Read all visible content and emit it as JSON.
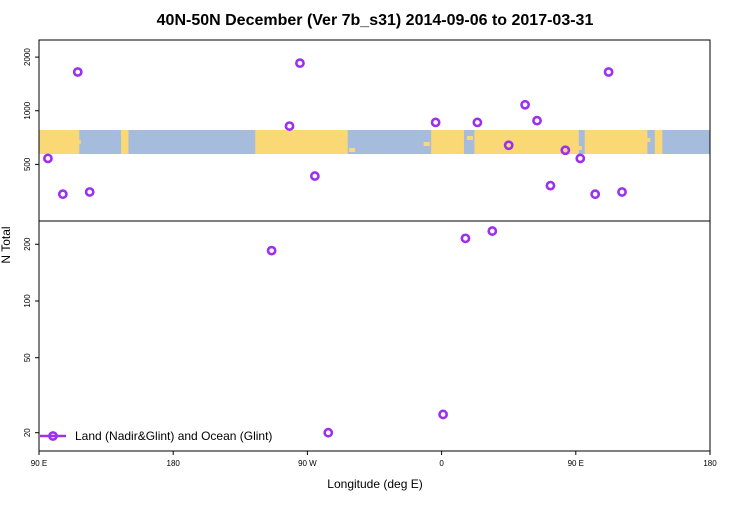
{
  "chart_data": {
    "type": "scatter",
    "title": "40N-50N December (Ver 7b_s31)   2014-09-06 to 2017-03-31",
    "xlabel": "Longitude (deg E)",
    "ylabel": "N Total",
    "x_ticks": [
      {
        "value": 90,
        "label": "90 E"
      },
      {
        "value": 180,
        "label": "180"
      },
      {
        "value": 270,
        "label": "90 W"
      },
      {
        "value": 360,
        "label": "0"
      },
      {
        "value": 450,
        "label": "90 E"
      },
      {
        "value": 540,
        "label": "180"
      }
    ],
    "xlim": [
      90,
      540
    ],
    "upper_panel": {
      "y_scale": "log",
      "ylim": [
        250,
        2400
      ],
      "y_ticks": [
        500,
        1000,
        2000
      ],
      "map_strip": "world map (land / ocean)",
      "land_color": "#fad876",
      "ocean_color": "#a6bcdc"
    },
    "lower_panel": {
      "y_scale": "log",
      "ylim": [
        17,
        250
      ],
      "y_ticks": [
        20,
        50,
        100,
        200
      ]
    },
    "series": [
      {
        "name": "Land (Nadir&Glint) and Ocean (Glint)",
        "color": "#9b30f0",
        "points": [
          {
            "x": 96,
            "y": 540
          },
          {
            "x": 106,
            "y": 340
          },
          {
            "x": 116,
            "y": 1650
          },
          {
            "x": 124,
            "y": 350
          },
          {
            "x": 246,
            "y": 185
          },
          {
            "x": 258,
            "y": 820
          },
          {
            "x": 265,
            "y": 1850
          },
          {
            "x": 275,
            "y": 430
          },
          {
            "x": 284,
            "y": 20
          },
          {
            "x": 356,
            "y": 860
          },
          {
            "x": 361,
            "y": 25
          },
          {
            "x": 376,
            "y": 215
          },
          {
            "x": 384,
            "y": 860
          },
          {
            "x": 394,
            "y": 235
          },
          {
            "x": 405,
            "y": 640
          },
          {
            "x": 416,
            "y": 1080
          },
          {
            "x": 424,
            "y": 880
          },
          {
            "x": 433,
            "y": 380
          },
          {
            "x": 443,
            "y": 600
          },
          {
            "x": 453,
            "y": 540
          },
          {
            "x": 463,
            "y": 340
          },
          {
            "x": 472,
            "y": 1650
          },
          {
            "x": 481,
            "y": 350
          }
        ]
      }
    ],
    "legend": {
      "position": "bottom-left"
    }
  }
}
